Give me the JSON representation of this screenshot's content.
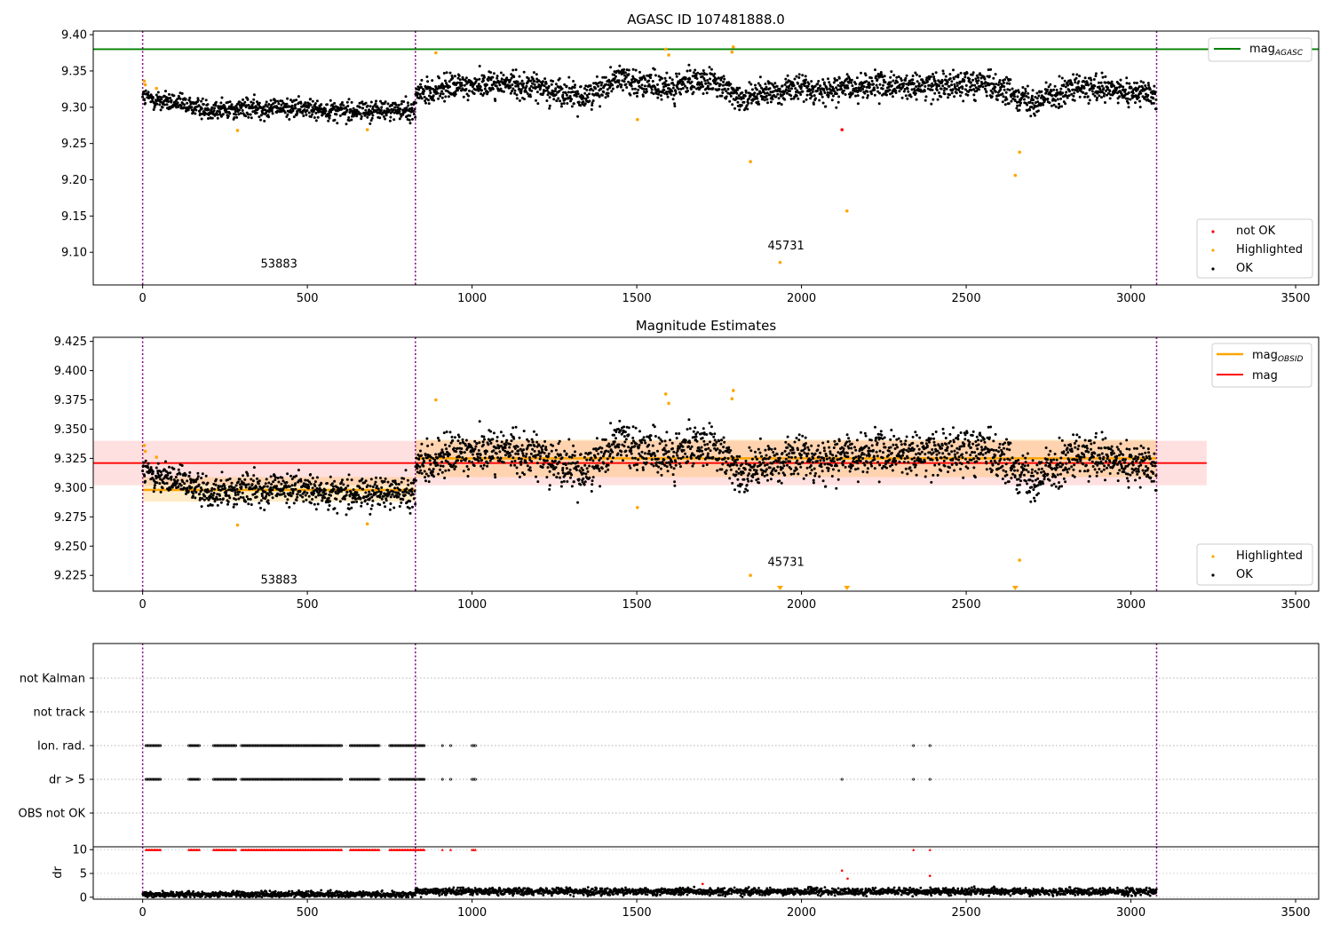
{
  "chart_data": [
    {
      "type": "scatter",
      "title": "AGASC ID 107481888.0",
      "xlim": [
        -150,
        3570
      ],
      "ylim": [
        9.055,
        9.405
      ],
      "xticks": [
        0,
        500,
        1000,
        1500,
        2000,
        2500,
        3000,
        3500
      ],
      "yticks": [
        9.1,
        9.15,
        9.2,
        9.25,
        9.3,
        9.35,
        9.4
      ],
      "obsid_boundaries": [
        0,
        828,
        3078
      ],
      "obsid_labels": [
        {
          "text": "53883",
          "x": 414,
          "y": 9.079
        },
        {
          "text": "45731",
          "x": 1953,
          "y": 9.104
        }
      ],
      "reference_line": {
        "name": "mag",
        "subscript": "AGASC",
        "y": 9.38,
        "color": "#008000"
      },
      "ok_segments": [
        {
          "x": [
            0,
            828
          ],
          "trend": [
            9.313,
            9.297,
            9.3,
            9.295,
            9.296
          ],
          "spread": 0.01
        },
        {
          "x": [
            828,
            3078
          ],
          "trend": [
            9.318,
            9.329,
            9.333,
            9.328,
            9.312,
            9.342,
            9.324,
            9.338,
            9.312,
            9.326,
            9.324,
            9.33,
            9.327,
            9.334,
            9.33,
            9.308,
            9.326,
            9.322,
            9.318
          ],
          "spread": 0.013
        }
      ],
      "highlighted_points": [
        {
          "x": 5,
          "y": 9.336
        },
        {
          "x": 8,
          "y": 9.331
        },
        {
          "x": 42,
          "y": 9.326
        },
        {
          "x": 288,
          "y": 9.268
        },
        {
          "x": 682,
          "y": 9.269
        },
        {
          "x": 890,
          "y": 9.375
        },
        {
          "x": 1502,
          "y": 9.283
        },
        {
          "x": 1588,
          "y": 9.38
        },
        {
          "x": 1597,
          "y": 9.372
        },
        {
          "x": 1789,
          "y": 9.376
        },
        {
          "x": 1793,
          "y": 9.383
        },
        {
          "x": 1845,
          "y": 9.225
        },
        {
          "x": 1935,
          "y": 9.086
        },
        {
          "x": 2138,
          "y": 9.157
        },
        {
          "x": 2649,
          "y": 9.206
        },
        {
          "x": 2662,
          "y": 9.238
        }
      ],
      "not_ok_points": [
        {
          "x": 2123,
          "y": 9.269
        }
      ],
      "legends": [
        {
          "placement": "top-right",
          "entries": [
            {
              "label": "mag",
              "subscript": "AGASC",
              "kind": "line",
              "color": "#008000"
            }
          ]
        },
        {
          "placement": "bottom-right",
          "entries": [
            {
              "label": "not OK",
              "kind": "point",
              "color": "#ff0000"
            },
            {
              "label": "Highlighted",
              "kind": "point",
              "color": "#ffa500"
            },
            {
              "label": "OK",
              "kind": "point",
              "color": "#000000"
            }
          ]
        }
      ]
    },
    {
      "type": "scatter",
      "title": "Magnitude Estimates",
      "xlim": [
        -150,
        3570
      ],
      "ylim": [
        9.2115,
        9.4285
      ],
      "xticks": [
        0,
        500,
        1000,
        1500,
        2000,
        2500,
        3000,
        3500
      ],
      "yticks": [
        9.225,
        9.25,
        9.275,
        9.3,
        9.325,
        9.35,
        9.375,
        9.4,
        9.425
      ],
      "obsid_boundaries": [
        0,
        828,
        3078
      ],
      "obsid_labels": [
        {
          "text": "53883",
          "x": 414,
          "y": 9.218
        },
        {
          "text": "45731",
          "x": 1953,
          "y": 9.233
        }
      ],
      "mag_line": {
        "name": "mag",
        "y": 9.321,
        "band": [
          9.302,
          9.34
        ],
        "x": [
          -150,
          3230
        ],
        "color": "#ff0000"
      },
      "obsid_means": [
        {
          "x": [
            0,
            828
          ],
          "y": 9.298,
          "band": [
            9.288,
            9.309
          ]
        },
        {
          "x": [
            828,
            3078
          ],
          "y": 9.325,
          "band": [
            9.309,
            9.341
          ]
        }
      ],
      "ok_segments": [
        {
          "x": [
            0,
            828
          ],
          "trend": [
            9.313,
            9.297,
            9.3,
            9.295,
            9.296
          ],
          "spread": 0.01
        },
        {
          "x": [
            828,
            3078
          ],
          "trend": [
            9.318,
            9.329,
            9.333,
            9.328,
            9.312,
            9.342,
            9.324,
            9.338,
            9.312,
            9.326,
            9.324,
            9.33,
            9.327,
            9.334,
            9.33,
            9.308,
            9.326,
            9.322,
            9.318
          ],
          "spread": 0.013
        }
      ],
      "highlighted_points": [
        {
          "x": 5,
          "y": 9.336
        },
        {
          "x": 8,
          "y": 9.331
        },
        {
          "x": 42,
          "y": 9.326
        },
        {
          "x": 288,
          "y": 9.268
        },
        {
          "x": 682,
          "y": 9.269
        },
        {
          "x": 890,
          "y": 9.375
        },
        {
          "x": 1502,
          "y": 9.283
        },
        {
          "x": 1588,
          "y": 9.38
        },
        {
          "x": 1597,
          "y": 9.372
        },
        {
          "x": 1789,
          "y": 9.376
        },
        {
          "x": 1793,
          "y": 9.383
        },
        {
          "x": 1845,
          "y": 9.225
        },
        {
          "x": 2662,
          "y": 9.238
        }
      ],
      "below_range_markers": [
        {
          "x": 1935
        },
        {
          "x": 2138
        },
        {
          "x": 2649
        }
      ],
      "legends": [
        {
          "placement": "top-right",
          "entries": [
            {
              "label": "mag",
              "subscript": "OBSID",
              "kind": "line",
              "color": "#ffa500"
            },
            {
              "label": "mag",
              "subscript": "",
              "kind": "line",
              "color": "#ff0000"
            }
          ]
        },
        {
          "placement": "bottom-right",
          "entries": [
            {
              "label": "Highlighted",
              "kind": "point",
              "color": "#ffa500"
            },
            {
              "label": "OK",
              "kind": "point",
              "color": "#000000"
            }
          ]
        }
      ]
    },
    {
      "type": "scatter",
      "title": "",
      "xlim": [
        -150,
        3570
      ],
      "flag_rows": [
        "OBS not OK",
        "dr > 5",
        "Ion. rad.",
        "not track",
        "not Kalman"
      ],
      "flag_segments": [
        {
          "row": "Ion. rad.",
          "ranges": [
            [
              10,
              55
            ],
            [
              140,
              175
            ],
            [
              215,
              285
            ],
            [
              300,
              605
            ],
            [
              630,
              720
            ],
            [
              750,
              830
            ],
            [
              835,
              855
            ]
          ],
          "isolated": [
            910,
            935,
            1000,
            1005,
            1010,
            2340,
            2390
          ]
        },
        {
          "row": "dr > 5",
          "ranges": [
            [
              10,
              55
            ],
            [
              140,
              175
            ],
            [
              215,
              285
            ],
            [
              300,
              605
            ],
            [
              630,
              720
            ],
            [
              750,
              830
            ],
            [
              835,
              855
            ]
          ],
          "isolated": [
            910,
            935,
            1000,
            1005,
            1010,
            2123,
            2340,
            2390
          ]
        }
      ],
      "boundaries": [
        0,
        828,
        3078
      ]
    },
    {
      "type": "scatter",
      "title": "",
      "ylabel": "dr",
      "xlim": [
        -150,
        3570
      ],
      "ylim": [
        -0.4,
        10.6
      ],
      "xticks": [
        0,
        500,
        1000,
        1500,
        2000,
        2500,
        3000,
        3500
      ],
      "yticks": [
        0,
        5,
        10
      ],
      "clip_value": 10,
      "dr_segments": [
        {
          "x": [
            0,
            828
          ],
          "mean": 0.6,
          "spread": 0.45
        },
        {
          "x": [
            828,
            3078
          ],
          "mean": 1.2,
          "spread": 0.55
        }
      ],
      "clipped_ranges": [
        [
          10,
          55
        ],
        [
          140,
          175
        ],
        [
          215,
          285
        ],
        [
          300,
          605
        ],
        [
          630,
          720
        ],
        [
          750,
          830
        ],
        [
          835,
          855
        ]
      ],
      "clipped_isolated": [
        910,
        935,
        1000,
        1005,
        1010,
        2340,
        2390
      ],
      "red_points": [
        {
          "x": 1700,
          "y": 2.8
        },
        {
          "x": 2123,
          "y": 5.6
        },
        {
          "x": 2140,
          "y": 3.9
        },
        {
          "x": 2390,
          "y": 4.5
        }
      ]
    }
  ]
}
